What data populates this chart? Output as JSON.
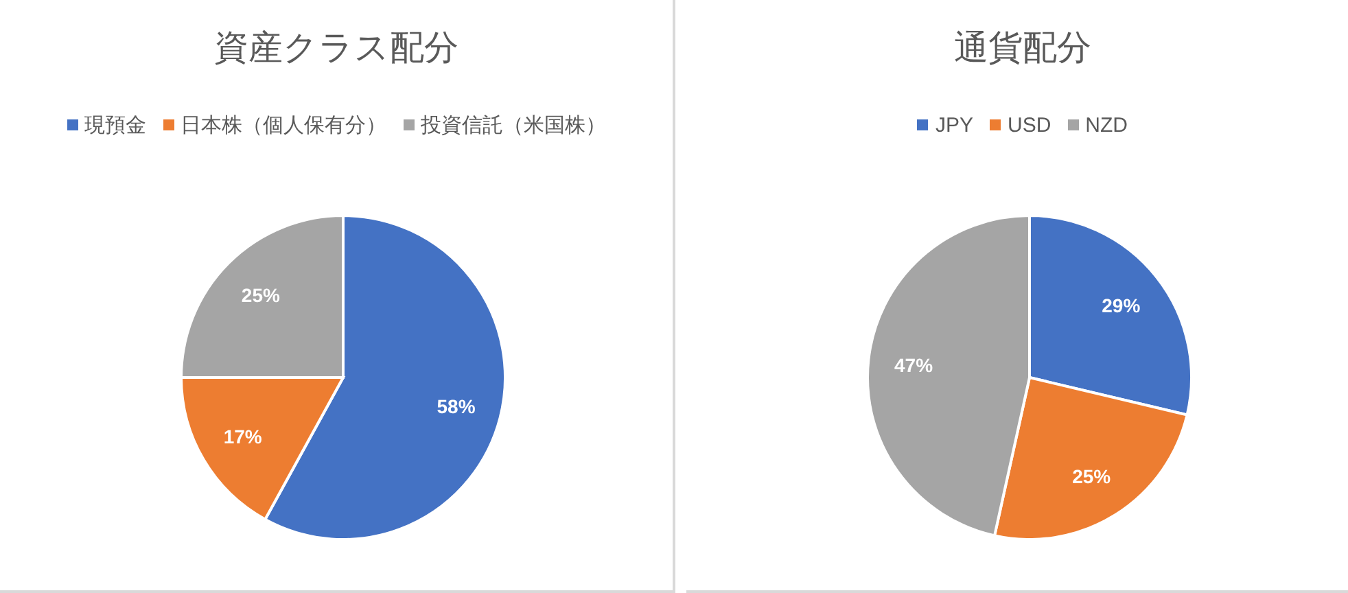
{
  "chart_data": [
    {
      "type": "pie",
      "title": "資産クラス配分",
      "categories": [
        "現預金",
        "日本株（個人保有分）",
        "投資信託（米国株）"
      ],
      "values": [
        58,
        17,
        25
      ],
      "value_labels": [
        "58%",
        "17%",
        "25%"
      ],
      "colors": [
        "#4472c4",
        "#ed7d31",
        "#a5a5a5"
      ],
      "legend": "top"
    },
    {
      "type": "pie",
      "title": "通貨配分",
      "categories": [
        "JPY",
        "USD",
        "NZD"
      ],
      "values": [
        29,
        25,
        47
      ],
      "value_labels": [
        "29%",
        "25%",
        "47%"
      ],
      "colors": [
        "#4472c4",
        "#ed7d31",
        "#a5a5a5"
      ],
      "legend": "top"
    }
  ]
}
